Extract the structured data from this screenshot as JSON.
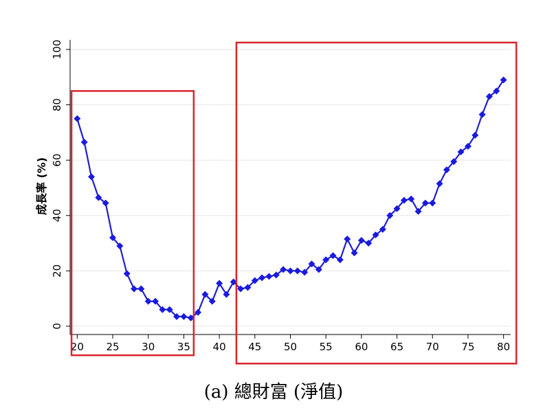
{
  "chart_data": {
    "type": "line",
    "ylabel": "成長率 (%)",
    "xlabel": "",
    "caption": "(a) 總財富 (淨值)",
    "xlim": [
      19,
      81
    ],
    "ylim": [
      -3,
      101
    ],
    "xticks": [
      20,
      25,
      30,
      35,
      40,
      45,
      50,
      55,
      60,
      65,
      70,
      75,
      80
    ],
    "yticks": [
      0,
      20,
      40,
      60,
      80,
      100
    ],
    "grid": true,
    "line_color": "#1f1fcf",
    "marker_color": "#1a1ae0",
    "highlight_color": "#d8252b",
    "marker": "diamond",
    "series": [
      {
        "x": [
          20,
          21,
          22,
          23,
          24,
          25,
          26,
          27,
          28,
          29,
          30,
          31,
          32,
          33,
          34,
          35,
          36,
          37,
          38,
          39,
          40,
          41,
          42,
          43,
          44,
          45,
          46,
          47,
          48,
          49,
          50,
          51,
          52,
          53,
          54,
          55,
          56,
          57,
          58,
          59,
          60,
          61,
          62,
          63,
          64,
          65,
          66,
          67,
          68,
          69,
          70,
          71,
          72,
          73,
          74,
          75,
          76,
          77,
          78,
          79,
          80
        ],
        "y": [
          75,
          66.5,
          54,
          46.5,
          44.5,
          32,
          29,
          19,
          13.5,
          13.5,
          9,
          9,
          6,
          6,
          3.5,
          3.5,
          3,
          5,
          11.5,
          9,
          15.5,
          11.5,
          16,
          13.5,
          14,
          16.5,
          17.5,
          18,
          18.5,
          20.5,
          20,
          20,
          19.5,
          22.5,
          20.5,
          24,
          25.5,
          24,
          31.5,
          26.5,
          31,
          30,
          33,
          35,
          40,
          42.5,
          45.5,
          46,
          41.5,
          44.5,
          44.5,
          51.5,
          56.5,
          59.5,
          63,
          65,
          69,
          76.5,
          83,
          85,
          89
        ]
      }
    ],
    "highlight_boxes": [
      {
        "x_range": [
          19.2,
          36.4
        ],
        "y_range": [
          -10.5,
          85
        ]
      },
      {
        "x_range": [
          42.4,
          81.8
        ],
        "y_range": [
          -13.5,
          102.5
        ]
      }
    ]
  }
}
